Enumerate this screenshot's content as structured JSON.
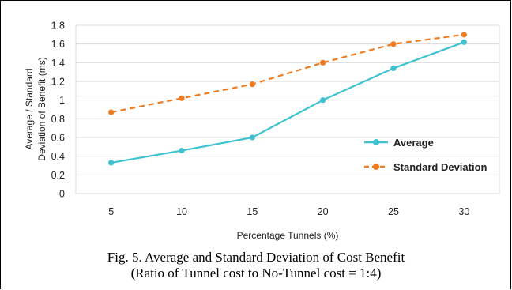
{
  "chart_data": {
    "type": "line",
    "x": [
      5,
      10,
      15,
      20,
      25,
      30
    ],
    "categories": [
      "5",
      "10",
      "15",
      "20",
      "25",
      "30"
    ],
    "series": [
      {
        "name": "Average",
        "values": [
          0.33,
          0.46,
          0.6,
          1.0,
          1.34,
          1.62
        ],
        "color": "#3fc2cf",
        "style": "solid"
      },
      {
        "name": "Standard Deviation",
        "values": [
          0.87,
          1.02,
          1.17,
          1.4,
          1.6,
          1.7
        ],
        "color": "#f07c22",
        "style": "dashed"
      }
    ],
    "xlabel": "Percentage Tunnels (%)",
    "ylabel_lines": [
      "Average / Standard",
      "Deviation of Benefit (ms)"
    ],
    "ylim": [
      0,
      1.8
    ],
    "yticks": [
      "0",
      "0.2",
      "0.4",
      "0.6",
      "0.8",
      "1",
      "1.2",
      "1.4",
      "1.6",
      "1.8"
    ],
    "grid": true,
    "legend_position": "right"
  },
  "caption": {
    "line1": "Fig. 5.   Average and Standard Deviation of Cost Benefit",
    "line2": "(Ratio of Tunnel cost to No-Tunnel cost = 1:4)"
  }
}
